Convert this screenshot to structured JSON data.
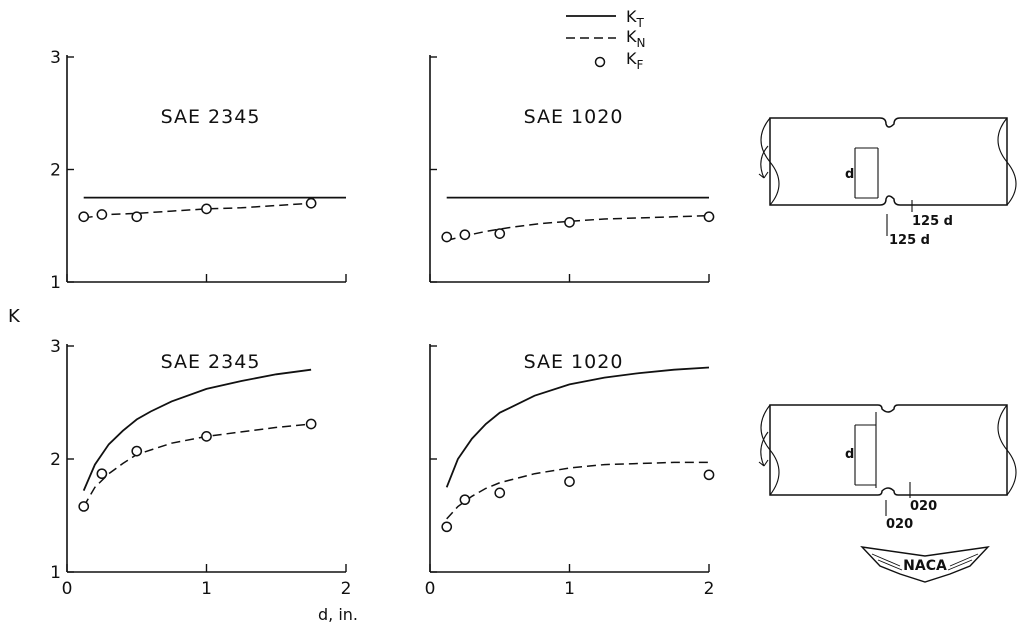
{
  "legend": {
    "entries": [
      {
        "key": "KT",
        "main": "K",
        "sub": "T",
        "style": "solid"
      },
      {
        "key": "KN",
        "main": "K",
        "sub": "N",
        "style": "dashed"
      },
      {
        "key": "KF",
        "main": "K",
        "sub": "F",
        "style": "circle"
      }
    ]
  },
  "ylabel": "K",
  "xlabel": "d, in.",
  "specimens": [
    {
      "dims": [
        "125 d",
        "125 d"
      ],
      "d_label": "d"
    },
    {
      "dims": [
        "020",
        "020"
      ],
      "d_label": "d"
    }
  ],
  "logo": "NACA",
  "colors": {
    "ink": "#111111",
    "paper": "#ffffff"
  },
  "chart_data": [
    {
      "type": "line",
      "title": "SAE 2345",
      "row": "top",
      "xlim": [
        0,
        2
      ],
      "ylim": [
        1,
        3
      ],
      "x_ticks": [
        0,
        1,
        2
      ],
      "y_ticks": [
        1,
        2,
        3
      ],
      "x_tick_labels": [
        "",
        "",
        ""
      ],
      "y_tick_labels": [
        "1",
        "2",
        "3"
      ],
      "series": [
        {
          "key": "KT",
          "x": [
            0.12,
            2.0
          ],
          "y": [
            1.75,
            1.75
          ]
        },
        {
          "key": "KN",
          "x": [
            0.12,
            0.3,
            0.5,
            0.75,
            1.0,
            1.25,
            1.5,
            1.75
          ],
          "y": [
            1.57,
            1.6,
            1.61,
            1.63,
            1.65,
            1.66,
            1.68,
            1.7
          ]
        },
        {
          "key": "KF",
          "x": [
            0.12,
            0.25,
            0.5,
            1.0,
            1.75
          ],
          "y": [
            1.58,
            1.6,
            1.58,
            1.65,
            1.7
          ]
        }
      ]
    },
    {
      "type": "line",
      "title": "SAE 1020",
      "row": "top",
      "xlim": [
        0,
        2
      ],
      "ylim": [
        1,
        3
      ],
      "x_ticks": [
        0,
        1,
        2
      ],
      "y_ticks": [
        1,
        2,
        3
      ],
      "x_tick_labels": [
        "",
        "",
        ""
      ],
      "y_tick_labels": [
        "",
        "",
        ""
      ],
      "series": [
        {
          "key": "KT",
          "x": [
            0.12,
            2.0
          ],
          "y": [
            1.75,
            1.75
          ]
        },
        {
          "key": "KN",
          "x": [
            0.12,
            0.25,
            0.4,
            0.6,
            0.8,
            1.0,
            1.25,
            1.5,
            1.75,
            2.0
          ],
          "y": [
            1.37,
            1.41,
            1.45,
            1.49,
            1.52,
            1.54,
            1.56,
            1.57,
            1.58,
            1.59
          ]
        },
        {
          "key": "KF",
          "x": [
            0.12,
            0.25,
            0.5,
            1.0,
            2.0
          ],
          "y": [
            1.4,
            1.42,
            1.43,
            1.53,
            1.58
          ]
        }
      ]
    },
    {
      "type": "line",
      "title": "SAE 2345",
      "row": "bottom",
      "xlim": [
        0,
        2
      ],
      "ylim": [
        1,
        3
      ],
      "x_ticks": [
        0,
        1,
        2
      ],
      "y_ticks": [
        1,
        2,
        3
      ],
      "x_tick_labels": [
        "0",
        "1",
        "2"
      ],
      "y_tick_labels": [
        "1",
        "2",
        "3"
      ],
      "series": [
        {
          "key": "KT",
          "x": [
            0.12,
            0.2,
            0.3,
            0.4,
            0.5,
            0.6,
            0.75,
            1.0,
            1.25,
            1.5,
            1.75
          ],
          "y": [
            1.72,
            1.95,
            2.13,
            2.25,
            2.35,
            2.42,
            2.51,
            2.62,
            2.69,
            2.75,
            2.79
          ]
        },
        {
          "key": "KN",
          "x": [
            0.12,
            0.2,
            0.3,
            0.4,
            0.5,
            0.75,
            1.0,
            1.25,
            1.5,
            1.75
          ],
          "y": [
            1.58,
            1.75,
            1.87,
            1.96,
            2.04,
            2.14,
            2.2,
            2.24,
            2.28,
            2.31
          ]
        },
        {
          "key": "KF",
          "x": [
            0.12,
            0.25,
            0.5,
            1.0,
            1.75
          ],
          "y": [
            1.58,
            1.87,
            2.07,
            2.2,
            2.31
          ]
        }
      ]
    },
    {
      "type": "line",
      "title": "SAE 1020",
      "row": "bottom",
      "xlim": [
        0,
        2
      ],
      "ylim": [
        1,
        3
      ],
      "x_ticks": [
        0,
        1,
        2
      ],
      "y_ticks": [
        1,
        2,
        3
      ],
      "x_tick_labels": [
        "0",
        "1",
        "2"
      ],
      "y_tick_labels": [
        "",
        "",
        ""
      ],
      "series": [
        {
          "key": "KT",
          "x": [
            0.12,
            0.2,
            0.3,
            0.4,
            0.5,
            0.75,
            1.0,
            1.25,
            1.5,
            1.75,
            2.0
          ],
          "y": [
            1.75,
            2.0,
            2.18,
            2.31,
            2.41,
            2.56,
            2.66,
            2.72,
            2.76,
            2.79,
            2.81
          ]
        },
        {
          "key": "KN",
          "x": [
            0.12,
            0.2,
            0.3,
            0.4,
            0.5,
            0.75,
            1.0,
            1.25,
            1.5,
            1.75,
            2.0
          ],
          "y": [
            1.47,
            1.58,
            1.67,
            1.74,
            1.79,
            1.87,
            1.92,
            1.95,
            1.96,
            1.97,
            1.97
          ]
        },
        {
          "key": "KF",
          "x": [
            0.12,
            0.25,
            0.5,
            1.0,
            2.0
          ],
          "y": [
            1.4,
            1.64,
            1.7,
            1.8,
            1.86
          ]
        }
      ]
    }
  ]
}
